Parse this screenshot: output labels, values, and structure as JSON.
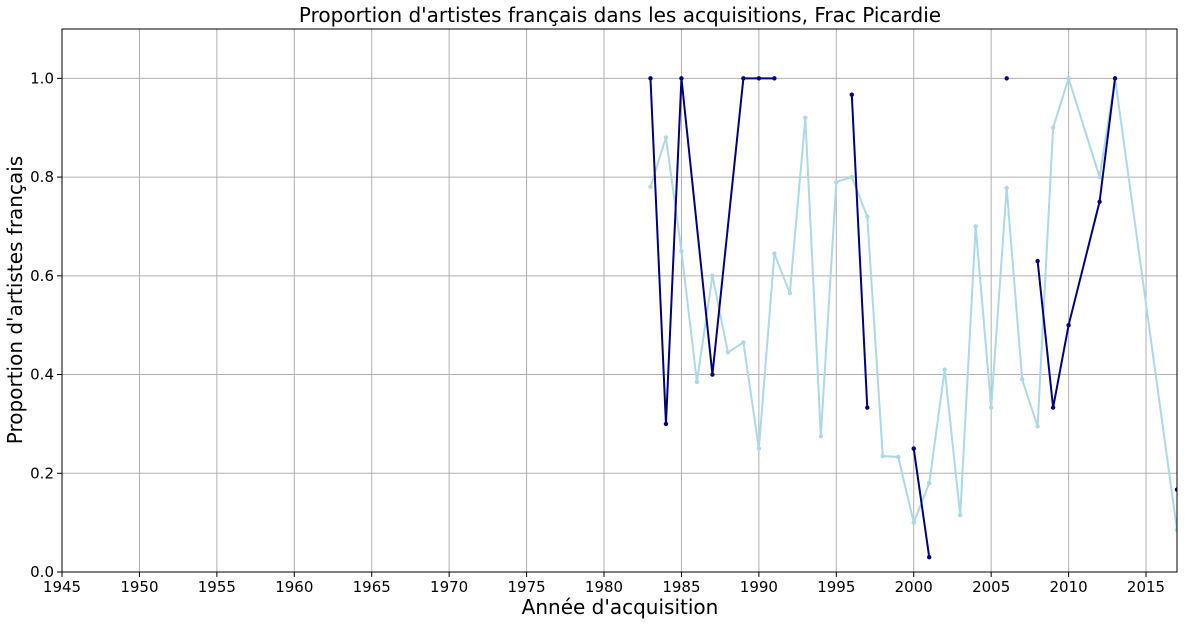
{
  "chart_data": {
    "type": "line",
    "title": "Proportion d'artistes français dans les acquisitions, Frac Picardie",
    "xlabel": "Année d'acquisition",
    "ylabel": "Proportion d'artistes français",
    "xlim": [
      1945,
      2017
    ],
    "ylim": [
      0,
      1.1
    ],
    "xticks": [
      1945,
      1950,
      1955,
      1960,
      1965,
      1970,
      1975,
      1980,
      1985,
      1990,
      1995,
      2000,
      2005,
      2010,
      2015
    ],
    "yticks": [
      0.0,
      0.2,
      0.4,
      0.6,
      0.8,
      1.0
    ],
    "xtick_labels": [
      "1945",
      "1950",
      "1955",
      "1960",
      "1965",
      "1970",
      "1975",
      "1980",
      "1985",
      "1990",
      "1995",
      "2000",
      "2005",
      "2010",
      "2015"
    ],
    "ytick_labels": [
      "0.0",
      "0.2",
      "0.4",
      "0.6",
      "0.8",
      "1.0"
    ],
    "grid": true,
    "series": [
      {
        "color": "#add8e6",
        "points": [
          [
            1983,
            0.78
          ],
          [
            1984,
            0.88
          ],
          [
            1985,
            0.65
          ],
          [
            1986,
            0.385
          ],
          [
            1987,
            0.6
          ],
          [
            1988,
            0.445
          ],
          [
            1989,
            0.465
          ],
          [
            1990,
            0.25
          ],
          [
            1991,
            0.645
          ],
          [
            1992,
            0.565
          ],
          [
            1993,
            0.92
          ],
          [
            1994,
            0.275
          ],
          [
            1995,
            0.79
          ],
          [
            1996,
            0.8
          ],
          [
            1997,
            0.72
          ],
          [
            1998,
            0.235
          ],
          [
            1999,
            0.233
          ],
          [
            2000,
            0.1
          ],
          [
            2001,
            0.18
          ],
          [
            2002,
            0.41
          ],
          [
            2003,
            0.115
          ],
          [
            2004,
            0.7
          ],
          [
            2005,
            0.333
          ],
          [
            2006,
            0.778
          ],
          [
            2007,
            0.39
          ],
          [
            2008,
            0.295
          ],
          [
            2009,
            0.9
          ],
          [
            2010,
            1.0
          ],
          [
            2012,
            0.8
          ],
          [
            2013,
            1.0
          ],
          [
            2017,
            0.085
          ]
        ]
      },
      {
        "color": "#000080",
        "segments": [
          [
            [
              1983,
              1.0
            ],
            [
              1984,
              0.3
            ],
            [
              1985,
              1.0
            ],
            [
              1987,
              0.4
            ],
            [
              1989,
              1.0
            ],
            [
              1990,
              1.0
            ],
            [
              1991,
              1.0
            ]
          ],
          [
            [
              1996,
              0.967
            ],
            [
              1997,
              0.333
            ]
          ],
          [
            [
              2000,
              0.25
            ],
            [
              2001,
              0.03
            ]
          ],
          [
            [
              2006,
              1.0
            ]
          ],
          [
            [
              2008,
              0.63
            ],
            [
              2009,
              0.333
            ],
            [
              2010,
              0.5
            ],
            [
              2012,
              0.75
            ],
            [
              2013,
              1.0
            ]
          ],
          [
            [
              2017,
              0.167
            ]
          ]
        ]
      }
    ]
  }
}
